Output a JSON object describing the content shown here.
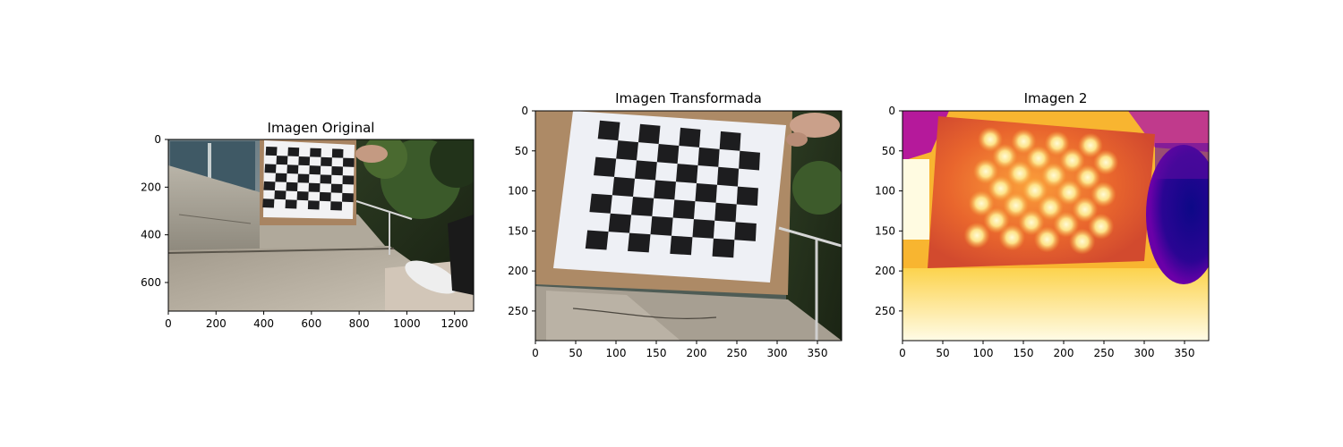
{
  "chart_data": [
    {
      "type": "image",
      "title": "Imagen Original",
      "xlim": [
        0,
        1280
      ],
      "ylim": [
        720,
        0
      ],
      "xticks": [
        0,
        200,
        400,
        600,
        800,
        1000,
        1200
      ],
      "yticks": [
        0,
        200,
        400,
        600
      ],
      "content": "photo",
      "board": {
        "cols": 8,
        "rows": 7,
        "corners": [
          [
            410,
            30
          ],
          [
            780,
            42
          ],
          [
            775,
            300
          ],
          [
            395,
            285
          ]
        ]
      }
    },
    {
      "type": "image",
      "title": "Imagen Transformada",
      "xlim": [
        0,
        380
      ],
      "ylim": [
        287,
        0
      ],
      "xticks": [
        0,
        50,
        100,
        150,
        200,
        250,
        300,
        350
      ],
      "yticks": [
        0,
        50,
        100,
        150,
        200,
        250
      ],
      "content": "photo",
      "board": {
        "cols": 8,
        "rows": 7,
        "corners": [
          [
            80,
            12
          ],
          [
            280,
            30
          ],
          [
            272,
            185
          ],
          [
            62,
            172
          ]
        ]
      }
    },
    {
      "type": "heatmap",
      "title": "Imagen 2",
      "colormap": "plasma-like",
      "xlim": [
        0,
        380
      ],
      "ylim": [
        287,
        0
      ],
      "xticks": [
        0,
        50,
        100,
        150,
        200,
        250,
        300,
        350
      ],
      "yticks": [
        0,
        50,
        100,
        150,
        200,
        250
      ],
      "content": "heatmap",
      "board": {
        "cols": 8,
        "rows": 7,
        "corners": [
          [
            100,
            25
          ],
          [
            265,
            35
          ],
          [
            255,
            175
          ],
          [
            80,
            165
          ]
        ]
      }
    }
  ]
}
